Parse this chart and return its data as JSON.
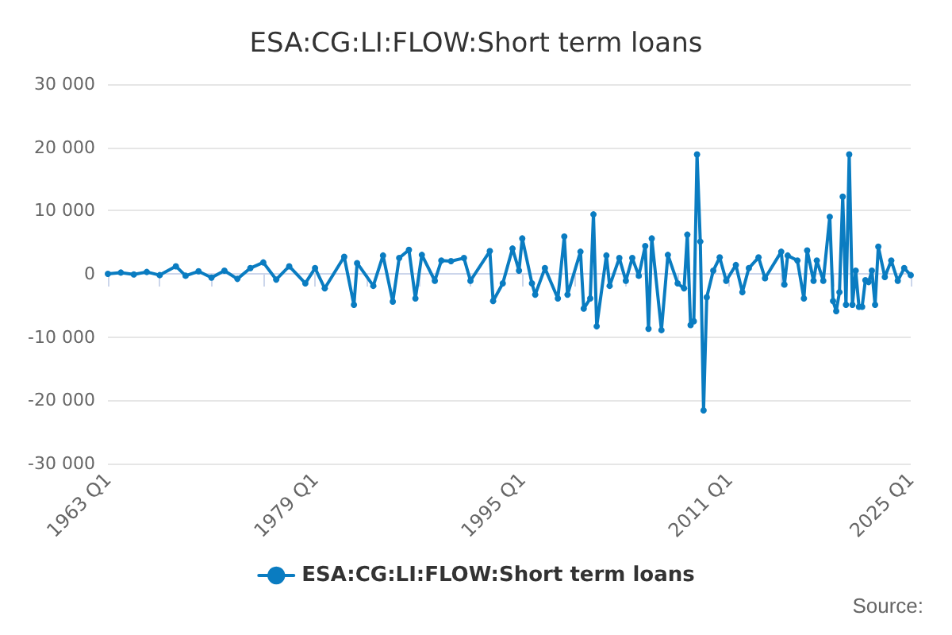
{
  "chart_data": {
    "type": "line",
    "title": "ESA:CG:LI:FLOW:Short term loans",
    "annotations": [
      "Source:"
    ],
    "x": [
      "1963-01",
      "1964-01",
      "1965-01",
      "1966-01",
      "1967-01",
      "1968-04",
      "1969-01",
      "1970-01",
      "1971-01",
      "1972-01",
      "1973-01",
      "1974-01",
      "1975-01",
      "1976-01",
      "1977-01",
      "1978-04",
      "1979-01",
      "1979-10",
      "1981-04",
      "1982-01",
      "1982-04",
      "1983-07",
      "1984-04",
      "1985-01",
      "1985-07",
      "1986-04",
      "1986-10",
      "1987-04",
      "1988-04",
      "1988-10",
      "1989-07",
      "1990-07",
      "1991-01",
      "1992-07",
      "1992-10",
      "1993-07",
      "1994-04",
      "1994-10",
      "1995-01",
      "1995-10",
      "1996-01",
      "1996-10",
      "1997-10",
      "1998-04",
      "1998-07",
      "1999-07",
      "1999-10",
      "2000-04",
      "2000-07",
      "2000-10",
      "2001-07",
      "2001-10",
      "2002-07",
      "2003-01",
      "2003-07",
      "2004-01",
      "2004-07",
      "2004-10",
      "2005-01",
      "2005-10",
      "2006-04",
      "2007-01",
      "2007-07",
      "2007-10",
      "2008-01",
      "2008-04",
      "2008-07",
      "2008-10",
      "2009-01",
      "2009-04",
      "2009-10",
      "2010-04",
      "2010-10",
      "2011-07",
      "2012-01",
      "2012-07",
      "2013-04",
      "2013-10",
      "2015-01",
      "2015-04",
      "2015-07",
      "2016-04",
      "2016-10",
      "2017-01",
      "2017-07",
      "2017-10",
      "2018-04",
      "2018-10",
      "2019-01",
      "2019-04",
      "2019-07",
      "2019-10",
      "2020-01",
      "2020-04",
      "2020-07",
      "2020-10",
      "2021-01",
      "2021-04",
      "2021-07",
      "2021-10",
      "2022-01",
      "2022-04",
      "2022-07",
      "2023-01",
      "2023-07",
      "2024-01",
      "2024-07",
      "2025-01"
    ],
    "series": [
      {
        "name": "ESA:CG:LI:FLOW:Short term loans",
        "color": "#0a7cc1",
        "values": [
          0,
          200,
          -100,
          300,
          -200,
          1200,
          -300,
          400,
          -600,
          500,
          -800,
          900,
          1800,
          -900,
          1200,
          -1500,
          900,
          -2300,
          2700,
          -4900,
          1700,
          -1900,
          2900,
          -4400,
          2500,
          3800,
          -3900,
          3000,
          -1100,
          2100,
          2000,
          2500,
          -1100,
          3600,
          -4300,
          -1500,
          4000,
          500,
          5600,
          -1500,
          -3300,
          900,
          -3900,
          5900,
          -3300,
          3500,
          -5500,
          -3900,
          9400,
          -8300,
          2900,
          -1900,
          2500,
          -1100,
          2500,
          -300,
          4400,
          -8700,
          5600,
          -8900,
          3000,
          -1500,
          -2300,
          6200,
          -8100,
          -7500,
          18900,
          5100,
          -21600,
          -3700,
          500,
          2600,
          -1100,
          1400,
          -2900,
          900,
          2600,
          -700,
          3500,
          -1700,
          2900,
          2100,
          -3900,
          3700,
          -1100,
          2100,
          -1100,
          9000,
          -4300,
          -5900,
          -2900,
          12200,
          -4900,
          18900,
          -4900,
          500,
          -5200,
          -5200,
          -1000,
          -1300,
          500,
          -4900,
          4300,
          -500,
          2100,
          -1100,
          900,
          -200
        ]
      }
    ],
    "xlim": [
      "1963-01",
      "2025-01"
    ],
    "xticks": [
      {
        "value": "1963-01",
        "label": "1963 Q1"
      },
      {
        "value": "1967-01",
        "label": null
      },
      {
        "value": "1971-01",
        "label": null
      },
      {
        "value": "1975-01",
        "label": null
      },
      {
        "value": "1979-01",
        "label": "1979 Q1"
      },
      {
        "value": "1983-01",
        "label": null
      },
      {
        "value": "1987-01",
        "label": null
      },
      {
        "value": "1991-01",
        "label": null
      },
      {
        "value": "1995-01",
        "label": "1995 Q1"
      },
      {
        "value": "1999-01",
        "label": null
      },
      {
        "value": "2003-01",
        "label": null
      },
      {
        "value": "2007-01",
        "label": null
      },
      {
        "value": "2011-01",
        "label": "2011 Q1"
      },
      {
        "value": "2015-01",
        "label": null
      },
      {
        "value": "2019-01",
        "label": null
      },
      {
        "value": "2025-01",
        "label": "2025 Q1"
      }
    ],
    "ylim": [
      -30000,
      30000
    ],
    "yticks": [
      {
        "value": -30000,
        "label": "-30 000"
      },
      {
        "value": -20000,
        "label": "-20 000"
      },
      {
        "value": -10000,
        "label": "-10 000"
      },
      {
        "value": 0,
        "label": "0"
      },
      {
        "value": 10000,
        "label": "10 000"
      },
      {
        "value": 20000,
        "label": "20 000"
      },
      {
        "value": 30000,
        "label": "30 000"
      }
    ],
    "grid": "y",
    "legend": "bottom",
    "marker": "circle",
    "line_style": "solid"
  }
}
